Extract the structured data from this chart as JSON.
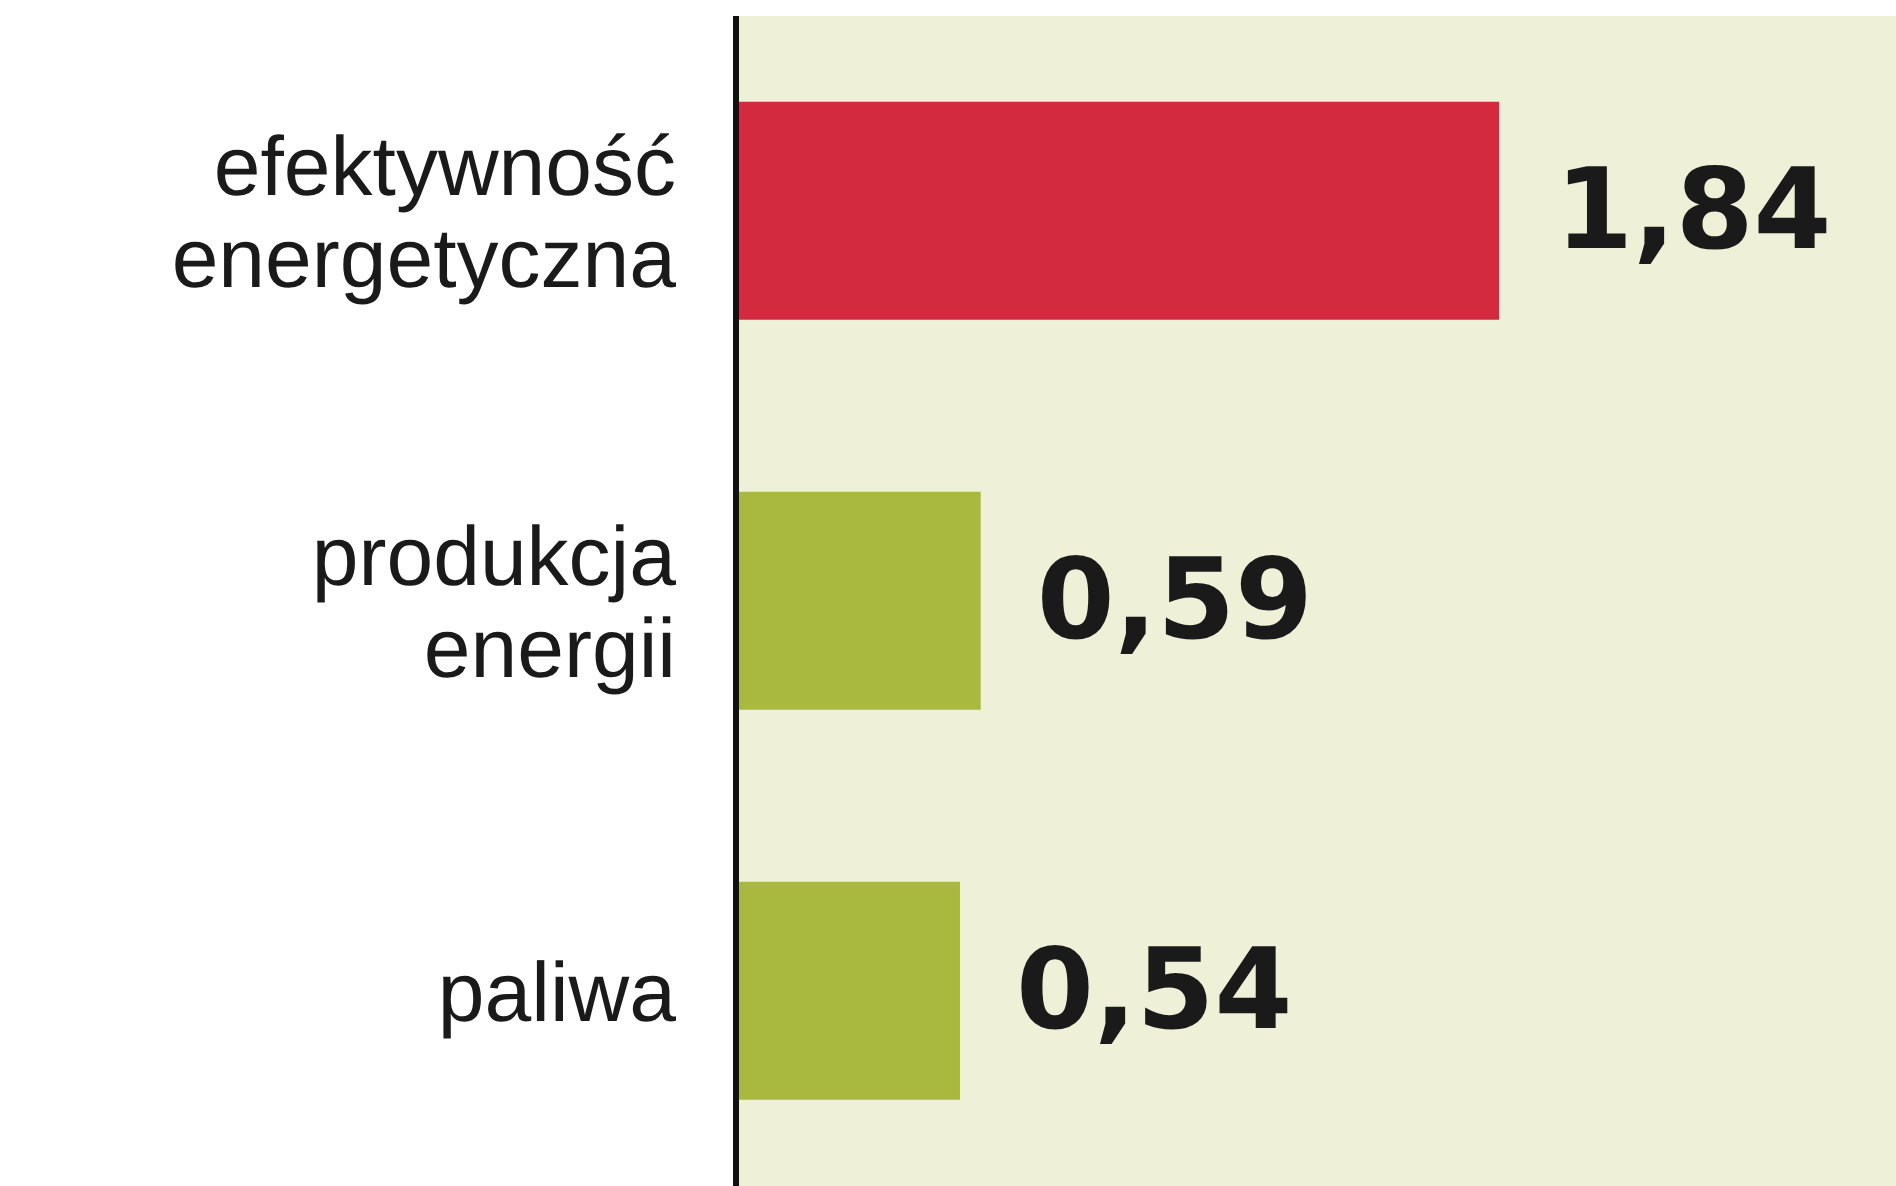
{
  "chart_data": {
    "type": "bar",
    "orientation": "horizontal",
    "categories": [
      "efektywność energetyczna",
      "produkcja energii",
      "paliwa"
    ],
    "values": [
      1.84,
      0.59,
      0.54
    ],
    "value_labels": [
      "1,84",
      "0,59",
      "0,54"
    ],
    "colors": [
      "#d42a40",
      "#a9b83e",
      "#a9b83e"
    ]
  }
}
